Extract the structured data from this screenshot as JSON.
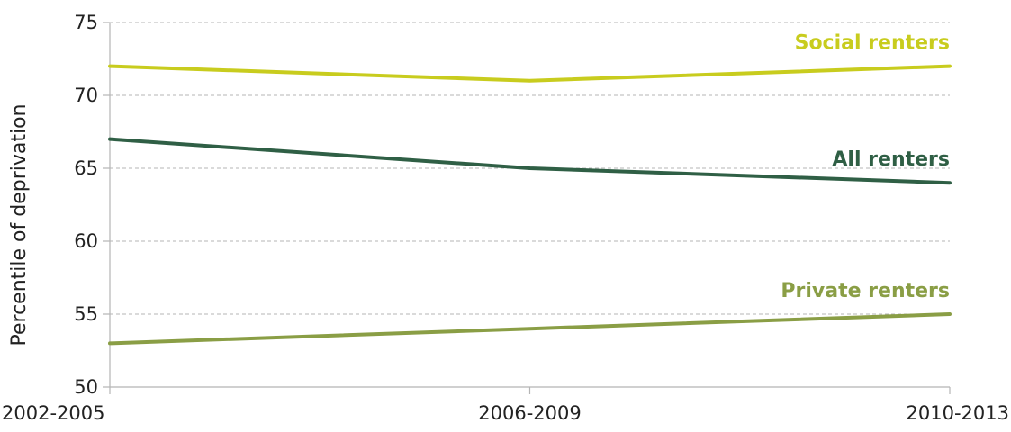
{
  "chart_data": {
    "type": "line",
    "title": "",
    "xlabel": "",
    "ylabel": "Percentile of deprivation",
    "ylim": [
      50,
      75
    ],
    "yticks": [
      50,
      55,
      60,
      65,
      70,
      75
    ],
    "grid": true,
    "categories": [
      "2002-2005",
      "2006-2009",
      "2010-2013"
    ],
    "series": [
      {
        "name": "Social renters",
        "values": [
          72,
          71,
          72
        ],
        "color": "#c8cc1e"
      },
      {
        "name": "All renters",
        "values": [
          67,
          65,
          64
        ],
        "color": "#2f5f45"
      },
      {
        "name": "Private renters",
        "values": [
          53,
          54,
          55
        ],
        "color": "#8a9e45"
      }
    ]
  }
}
